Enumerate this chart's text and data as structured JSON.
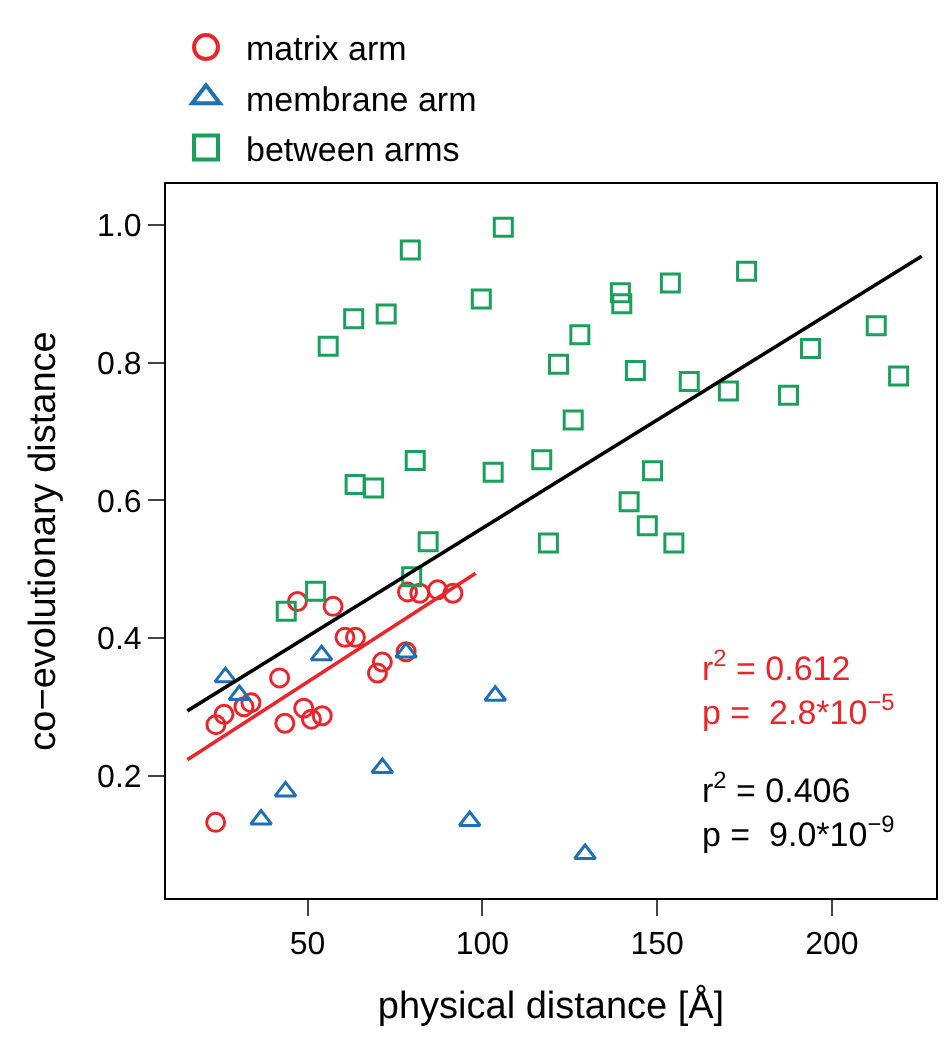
{
  "chart_data": {
    "type": "scatter",
    "xlabel": "physical distance [Å]",
    "ylabel": "co−evolutionary distance",
    "xlim": [
      9.5,
      229.8
    ],
    "ylim": [
      0.022,
      1.06
    ],
    "xticks": [
      50,
      100,
      150,
      200
    ],
    "yticks": [
      0.2,
      0.4,
      0.6,
      0.8,
      {
        "value": 1,
        "label": "1.0"
      }
    ],
    "legend": "top left",
    "annotations": [
      "r$^{2}$ = 0.612\np =  2.8*10$^{−5}$",
      "r$^{2}$ = 0.406\np =  9.0*10$^{−9}$"
    ],
    "series": [
      {
        "name": "matrix arm",
        "color": "#e8262b",
        "marker": "circle",
        "x": [
          23.7,
          23.8,
          26.1,
          31.8,
          33.8,
          42,
          43.5,
          47.1,
          57.3,
          48.9,
          51.1,
          54.2,
          60.7,
          63.7,
          71.4,
          70,
          78.2,
          78.6,
          82.1,
          87.2,
          91.6
        ],
        "values": [
          0.132,
          0.274,
          0.289,
          0.3,
          0.306,
          0.342,
          0.276,
          0.453,
          0.446,
          0.298,
          0.282,
          0.287,
          0.401,
          0.401,
          0.365,
          0.349,
          0.38,
          0.467,
          0.465,
          0.47,
          0.465
        ]
      },
      {
        "name": "membrane arm",
        "color": "#1f6fb4",
        "marker": "triangle",
        "x": [
          26.5,
          30.5,
          54,
          78.2,
          103.7,
          71.4,
          43.7,
          36.7,
          96.4,
          129.4
        ],
        "values": [
          0.343,
          0.317,
          0.375,
          0.379,
          0.316,
          0.211,
          0.177,
          0.136,
          0.134,
          0.086
        ]
      },
      {
        "name": "between arms",
        "color": "#1aa05a",
        "marker": "square",
        "x": [
          106,
          79.4,
          99.7,
          63.2,
          72.5,
          55.9,
          121.8,
          80.8,
          63.6,
          68.9,
          103.1,
          117,
          175.6,
          153.8,
          139.5,
          139.9,
          127.9,
          143.8,
          159.2,
          170.4,
          187.6,
          193.9,
          212.7,
          219.1,
          126,
          148.7,
          142,
          147.2,
          154.8,
          118.9,
          84.5,
          79.8,
          52.3,
          43.9
        ],
        "values": [
          0.997,
          0.964,
          0.893,
          0.864,
          0.871,
          0.824,
          0.798,
          0.658,
          0.623,
          0.618,
          0.641,
          0.659,
          0.933,
          0.916,
          0.902,
          0.886,
          0.841,
          0.789,
          0.773,
          0.759,
          0.753,
          0.821,
          0.854,
          0.781,
          0.717,
          0.643,
          0.598,
          0.563,
          0.538,
          0.538,
          0.54,
          0.489,
          0.468,
          0.439
        ]
      },
      {
        "type": "line",
        "color": "#e8262b",
        "x": [
          15.6,
          98.1
        ],
        "values": [
          0.223,
          0.494
        ]
      },
      {
        "type": "line",
        "color": "#000000",
        "x": [
          15.6,
          225.7
        ],
        "values": [
          0.294,
          0.955
        ]
      }
    ]
  }
}
